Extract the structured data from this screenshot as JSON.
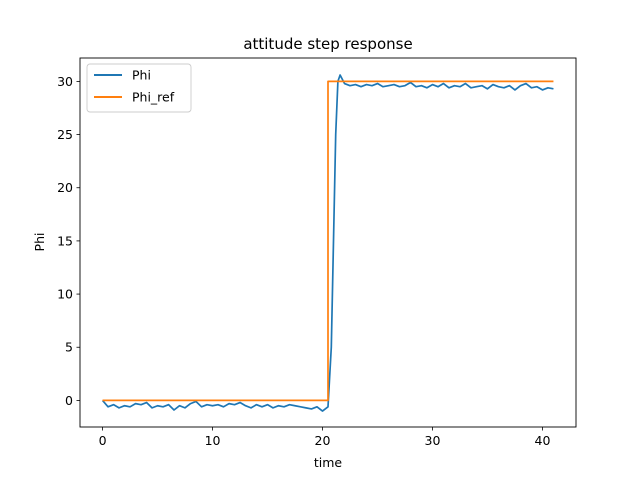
{
  "chart_data": {
    "type": "line",
    "title": "attitude step response",
    "xlabel": "time",
    "ylabel": "Phi",
    "xlim": [
      -2.05,
      43.05
    ],
    "ylim": [
      -2.5,
      32.2
    ],
    "xticks": [
      0,
      10,
      20,
      30,
      40
    ],
    "yticks": [
      0,
      5,
      10,
      15,
      20,
      25,
      30
    ],
    "grid": false,
    "legend_position": "top-left",
    "series": [
      {
        "name": "Phi",
        "color": "#1f77b4",
        "x": [
          0.0,
          0.5,
          1.0,
          1.5,
          2.0,
          2.5,
          3.0,
          3.5,
          4.0,
          4.5,
          5.0,
          5.5,
          6.0,
          6.5,
          7.0,
          7.5,
          8.0,
          8.5,
          9.0,
          9.5,
          10.0,
          10.5,
          11.0,
          11.5,
          12.0,
          12.5,
          13.0,
          13.5,
          14.0,
          14.5,
          15.0,
          15.5,
          16.0,
          16.5,
          17.0,
          17.5,
          18.0,
          18.5,
          19.0,
          19.5,
          20.0,
          20.5,
          20.8,
          21.0,
          21.2,
          21.4,
          21.6,
          22.0,
          22.5,
          23.0,
          23.5,
          24.0,
          24.5,
          25.0,
          25.5,
          26.0,
          26.5,
          27.0,
          27.5,
          28.0,
          28.5,
          29.0,
          29.5,
          30.0,
          30.5,
          31.0,
          31.5,
          32.0,
          32.5,
          33.0,
          33.5,
          34.0,
          34.5,
          35.0,
          35.5,
          36.0,
          36.5,
          37.0,
          37.5,
          38.0,
          38.5,
          39.0,
          39.5,
          40.0,
          40.5,
          41.0
        ],
        "y": [
          0.0,
          -0.6,
          -0.4,
          -0.7,
          -0.5,
          -0.6,
          -0.3,
          -0.4,
          -0.2,
          -0.7,
          -0.5,
          -0.6,
          -0.4,
          -0.9,
          -0.5,
          -0.7,
          -0.3,
          -0.1,
          -0.6,
          -0.4,
          -0.5,
          -0.4,
          -0.6,
          -0.3,
          -0.4,
          -0.2,
          -0.5,
          -0.7,
          -0.4,
          -0.6,
          -0.4,
          -0.7,
          -0.5,
          -0.6,
          -0.4,
          -0.5,
          -0.6,
          -0.7,
          -0.8,
          -0.6,
          -1.0,
          -0.6,
          5.0,
          15.0,
          25.0,
          30.0,
          30.6,
          29.8,
          29.6,
          29.7,
          29.5,
          29.7,
          29.6,
          29.8,
          29.5,
          29.6,
          29.7,
          29.5,
          29.6,
          29.9,
          29.5,
          29.6,
          29.4,
          29.7,
          29.5,
          29.8,
          29.4,
          29.6,
          29.5,
          29.8,
          29.4,
          29.5,
          29.6,
          29.3,
          29.7,
          29.5,
          29.4,
          29.6,
          29.2,
          29.6,
          29.8,
          29.4,
          29.5,
          29.2,
          29.4,
          29.3
        ]
      },
      {
        "name": "Phi_ref",
        "color": "#ff7f0e",
        "x": [
          0.0,
          20.5,
          20.5,
          41.0
        ],
        "y": [
          0,
          0,
          30,
          30
        ]
      }
    ]
  }
}
